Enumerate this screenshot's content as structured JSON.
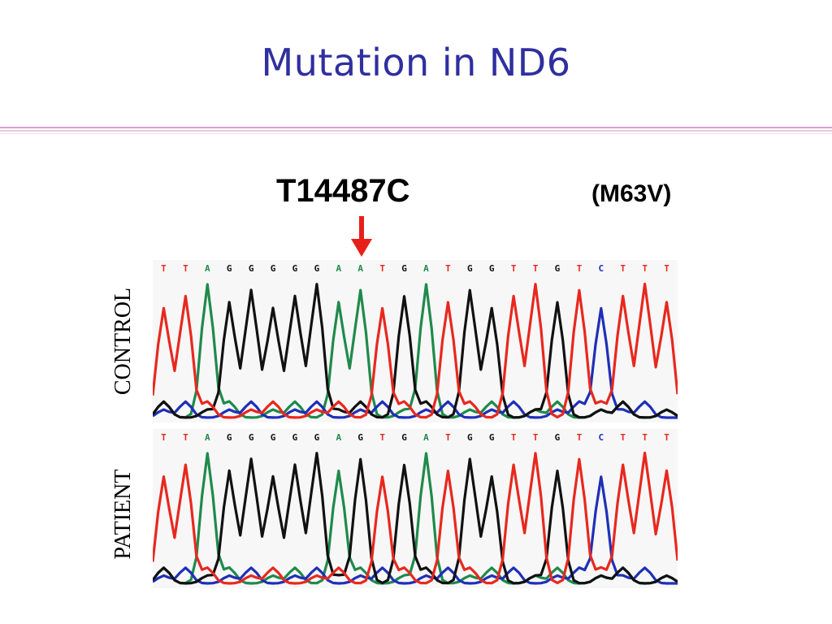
{
  "title": "Mutation in  ND6",
  "mutation": "T14487C",
  "aa_change": "(M63V)",
  "tracks": {
    "control": {
      "label": "CONTROL",
      "sequence": [
        "T",
        "T",
        "A",
        "G",
        "G",
        "G",
        "G",
        "G",
        "A",
        "A",
        "T",
        "G",
        "A",
        "T",
        "G",
        "G",
        "T",
        "T",
        "G",
        "T",
        "C",
        "T",
        "T",
        "T"
      ]
    },
    "patient": {
      "label": "PATIENT",
      "sequence": [
        "T",
        "T",
        "A",
        "G",
        "G",
        "G",
        "G",
        "G",
        "A",
        "G",
        "T",
        "G",
        "A",
        "T",
        "G",
        "G",
        "T",
        "T",
        "G",
        "T",
        "C",
        "T",
        "T",
        "T"
      ]
    }
  },
  "base_colors": {
    "A": "#1f8a4c",
    "C": "#1f2fb8",
    "G": "#111111",
    "T": "#e8281e"
  },
  "arrow_color": "#e8201a",
  "rule_color": "#d6a3cf",
  "title_color": "#2f2fa0"
}
